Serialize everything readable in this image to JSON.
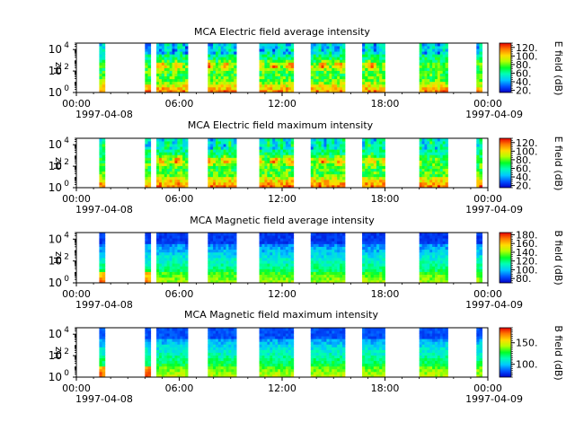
{
  "chart_data": [
    {
      "type": "heatmap",
      "title": "MCA  Electric field average intensity",
      "ylabel": "Hz",
      "y_ticks": [
        "10^0",
        "10^2",
        "10^4"
      ],
      "y_scale": "log",
      "ylim_hz": [
        1,
        40000
      ],
      "x_ticks": [
        "00:00",
        "06:00",
        "12:00",
        "18:00",
        "00:00"
      ],
      "x_dates": {
        "start": "1997-04-08",
        "end": "1997-04-09"
      },
      "colorbar_label": "E field (dB)",
      "colorbar_ticks": [
        "20.",
        "40.",
        "60.",
        "80.",
        "100.",
        "120."
      ],
      "colorbar_range": [
        15,
        130
      ],
      "colorscale": [
        "#0000c8",
        "#0050ff",
        "#00c8ff",
        "#00ffb4",
        "#00ff28",
        "#b4ff00",
        "#ffdc00",
        "#ff7800",
        "#e60000"
      ]
    },
    {
      "type": "heatmap",
      "title": "MCA  Electric field maximum intensity",
      "ylabel": "Hz",
      "y_ticks": [
        "10^0",
        "10^2",
        "10^4"
      ],
      "y_scale": "log",
      "ylim_hz": [
        1,
        40000
      ],
      "x_ticks": [
        "00:00",
        "06:00",
        "12:00",
        "18:00",
        "00:00"
      ],
      "x_dates": {
        "start": "1997-04-08",
        "end": "1997-04-09"
      },
      "colorbar_label": "E field (dB)",
      "colorbar_ticks": [
        "20.",
        "40.",
        "60.",
        "80.",
        "100.",
        "120."
      ],
      "colorbar_range": [
        15,
        130
      ],
      "colorscale": [
        "#0000c8",
        "#0050ff",
        "#00c8ff",
        "#00ffb4",
        "#00ff28",
        "#b4ff00",
        "#ffdc00",
        "#ff7800",
        "#e60000"
      ]
    },
    {
      "type": "heatmap",
      "title": "MCA  Magnetic field average intensity",
      "ylabel": "Hz",
      "y_ticks": [
        "10^0",
        "10^2",
        "10^4"
      ],
      "y_scale": "log",
      "ylim_hz": [
        1,
        40000
      ],
      "x_ticks": [
        "00:00",
        "06:00",
        "12:00",
        "18:00",
        "00:00"
      ],
      "x_dates": {
        "start": "1997-04-08",
        "end": "1997-04-09"
      },
      "colorbar_label": "B field (dB)",
      "colorbar_ticks": [
        "80.",
        "100.",
        "120.",
        "140.",
        "160.",
        "180."
      ],
      "colorbar_range": [
        70,
        185
      ],
      "colorscale": [
        "#0000c8",
        "#0050ff",
        "#00c8ff",
        "#00ffb4",
        "#00ff28",
        "#b4ff00",
        "#ffdc00",
        "#ff7800",
        "#e60000"
      ]
    },
    {
      "type": "heatmap",
      "title": "MCA  Magnetic field maximum intensity",
      "ylabel": "Hz",
      "y_ticks": [
        "10^0",
        "10^2",
        "10^4"
      ],
      "y_scale": "log",
      "ylim_hz": [
        1,
        40000
      ],
      "x_ticks": [
        "00:00",
        "06:00",
        "12:00",
        "18:00",
        "00:00"
      ],
      "x_dates": {
        "start": "1997-04-08",
        "end": "1997-04-09"
      },
      "colorbar_label": "B field (dB)",
      "colorbar_ticks": [
        "100.",
        "150."
      ],
      "colorbar_range": [
        70,
        185
      ],
      "colorscale": [
        "#0000c8",
        "#0050ff",
        "#00c8ff",
        "#00ffb4",
        "#00ff28",
        "#b4ff00",
        "#ffdc00",
        "#ff7800",
        "#e60000"
      ]
    }
  ],
  "data_segments_utc": [
    [
      "01:20",
      "01:40"
    ],
    [
      "04:00",
      "04:20"
    ],
    [
      "04:40",
      "06:30"
    ],
    [
      "07:40",
      "09:20"
    ],
    [
      "10:40",
      "12:40"
    ],
    [
      "13:40",
      "15:40"
    ],
    [
      "16:40",
      "18:00"
    ],
    [
      "20:00",
      "21:40"
    ],
    [
      "23:20",
      "23:40"
    ]
  ]
}
